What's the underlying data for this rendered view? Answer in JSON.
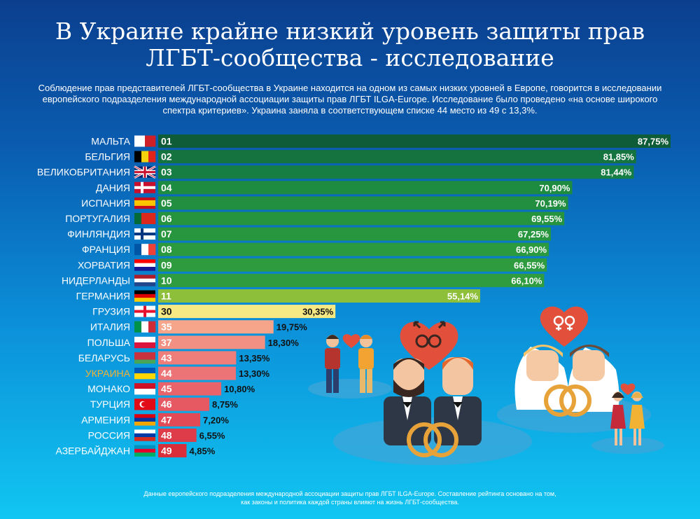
{
  "header": {
    "title_line1": "В Украине крайне низкий уровень защиты прав",
    "title_line2": "ЛГБТ-сообщества - исследование",
    "subtitle": "Соблюдение прав представителей ЛГБТ-сообщества в Украине находится на одном из самых низких уровней в Европе, говорится в исследовании европейского подразделения международной ассоциации защиты прав ЛГБТ ILGA-Europe. Исследование было проведено «на основе широкого спектра критериев». Украина заняла в соответствующем списке 44 место из 49 с 13,3%."
  },
  "chart_data": {
    "type": "bar",
    "orientation": "horizontal",
    "title": "",
    "xlabel": "",
    "ylabel": "",
    "xlim": [
      0,
      100
    ],
    "categories": [
      "МАЛЬТА",
      "БЕЛЬГИЯ",
      "ВЕЛИКОБРИТАНИЯ",
      "ДАНИЯ",
      "ИСПАНИЯ",
      "ПОРТУГАЛИЯ",
      "ФИНЛЯНДИЯ",
      "ФРАНЦИЯ",
      "ХОРВАТИЯ",
      "НИДЕРЛАНДЫ",
      "ГЕРМАНИЯ",
      "ГРУЗИЯ",
      "ИТАЛИЯ",
      "ПОЛЬША",
      "БЕЛАРУСЬ",
      "УКРАИНА",
      "МОНАКО",
      "ТУРЦИЯ",
      "АРМЕНИЯ",
      "РОССИЯ",
      "АЗЕРБАЙДЖАН"
    ],
    "ranks": [
      "01",
      "02",
      "03",
      "04",
      "05",
      "06",
      "07",
      "08",
      "09",
      "10",
      "11",
      "30",
      "35",
      "37",
      "43",
      "44",
      "45",
      "46",
      "47",
      "48",
      "49"
    ],
    "values": [
      87.75,
      81.85,
      81.44,
      70.9,
      70.19,
      69.55,
      67.25,
      66.9,
      66.55,
      66.1,
      55.14,
      30.35,
      19.75,
      18.3,
      13.35,
      13.3,
      10.8,
      8.75,
      7.2,
      6.55,
      4.85
    ],
    "value_labels": [
      "87,75%",
      "81,85%",
      "81,44%",
      "70,90%",
      "70,19%",
      "69,55%",
      "67,25%",
      "66,90%",
      "66,55%",
      "66,10%",
      "55,14%",
      "30,35%",
      "19,75%",
      "18,30%",
      "13,35%",
      "13,30%",
      "10,80%",
      "8,75%",
      "7,20%",
      "6,55%",
      "4,85%"
    ],
    "bar_colors": [
      "#0f5c38",
      "#14733e",
      "#167e42",
      "#1d8b40",
      "#228f40",
      "#26943f",
      "#28963e",
      "#2b993e",
      "#2d9b3e",
      "#2f9d3f",
      "#8ebf3a",
      "#f6e882",
      "#f6a58a",
      "#f29183",
      "#ef7d7a",
      "#ec7476",
      "#e9646a",
      "#e65862",
      "#e24a55",
      "#de3c48",
      "#d92f3b"
    ],
    "highlight": {
      "category": "УКРАИНА",
      "color": "#f2b233"
    }
  },
  "footnote": {
    "line1": "Данные европейского подразделения международной ассоциации защиты прав ЛГБТ ILGA-Europe. Составление рейтинга основано на том,",
    "line2": "как законы и политика каждой страны влияют на жизнь ЛГБТ-сообщества."
  },
  "colors": {
    "label_text": "#ffffff",
    "value_text_dark": "#111111",
    "value_text_light": "#ffffff"
  }
}
